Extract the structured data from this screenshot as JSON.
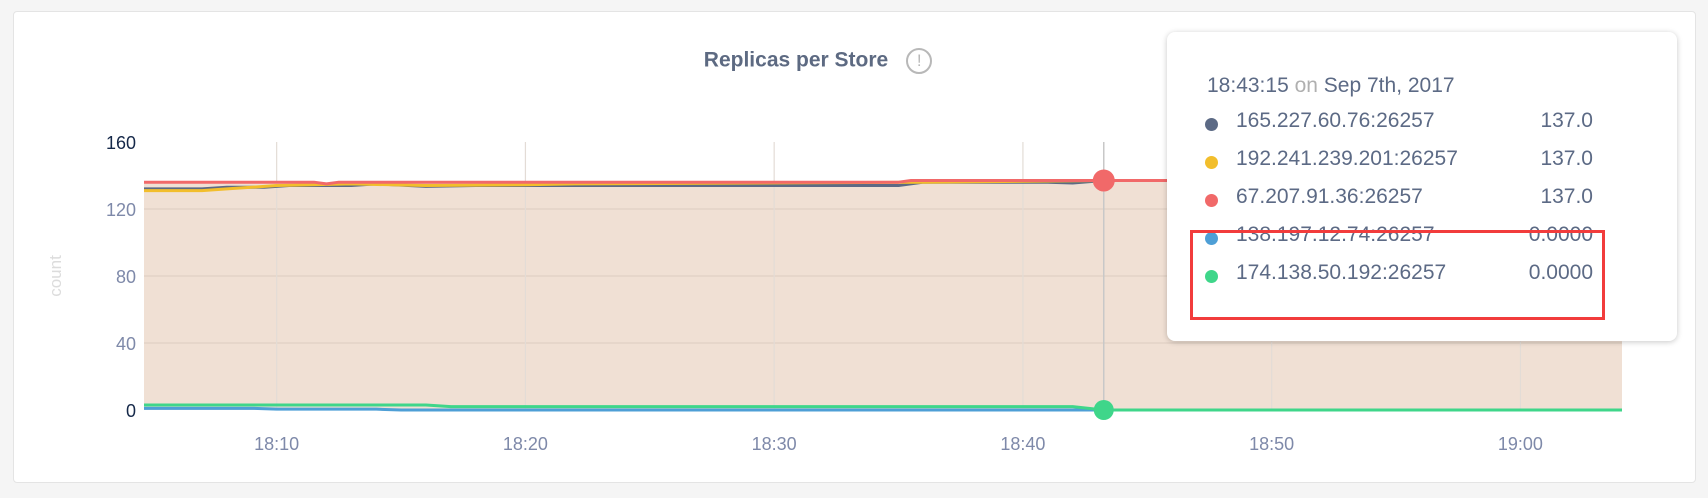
{
  "chart_data": {
    "type": "area",
    "title": "Replicas per Store",
    "ylabel": "count",
    "xlabel": "",
    "ylim": [
      0,
      160
    ],
    "yticks": [
      "0",
      "40",
      "80",
      "120",
      "160"
    ],
    "xlim": [
      "18:04:40",
      "19:04:05"
    ],
    "xticks": [
      "18:10",
      "18:20",
      "18:30",
      "18:40",
      "18:50",
      "19:00"
    ],
    "grid": true,
    "fill_color": "#f0e0d4",
    "series": [
      {
        "name": "165.227.60.76:26257",
        "color": "#5c6a85",
        "points": [
          [
            "18:04:40",
            132
          ],
          [
            "18:07:00",
            132
          ],
          [
            "18:08:00",
            133
          ],
          [
            "18:09:30",
            133
          ],
          [
            "18:10:30",
            134
          ],
          [
            "18:13:00",
            134
          ],
          [
            "18:14:00",
            135
          ],
          [
            "18:16:00",
            133.5
          ],
          [
            "18:18:00",
            134
          ],
          [
            "18:35:00",
            134
          ],
          [
            "18:36:00",
            136
          ],
          [
            "18:41:00",
            136
          ],
          [
            "18:42:00",
            135.5
          ],
          [
            "18:43:15",
            137
          ],
          [
            "19:04:05",
            137
          ]
        ]
      },
      {
        "name": "192.241.239.201:26257",
        "color": "#f2be2c",
        "points": [
          [
            "18:04:40",
            131
          ],
          [
            "18:07:00",
            131
          ],
          [
            "18:08:00",
            132
          ],
          [
            "18:10:00",
            134
          ],
          [
            "18:13:00",
            135
          ],
          [
            "18:16:00",
            134
          ],
          [
            "18:20:00",
            134.5
          ],
          [
            "18:22:00",
            135
          ],
          [
            "18:36:00",
            136
          ],
          [
            "18:43:15",
            137
          ],
          [
            "19:04:05",
            137
          ]
        ]
      },
      {
        "name": "67.207.91.36:26257",
        "color": "#f16969",
        "points": [
          [
            "18:04:40",
            136
          ],
          [
            "18:11:30",
            136
          ],
          [
            "18:12:00",
            135
          ],
          [
            "18:12:30",
            136
          ],
          [
            "18:35:00",
            136
          ],
          [
            "18:35:30",
            137
          ],
          [
            "19:04:05",
            137
          ]
        ]
      },
      {
        "name": "138.197.12.74:26257",
        "color": "#4e9fd6",
        "points": [
          [
            "18:04:40",
            1
          ],
          [
            "18:09:00",
            1
          ],
          [
            "18:10:00",
            0.5
          ],
          [
            "18:14:00",
            0.5
          ],
          [
            "18:15:00",
            0
          ],
          [
            "19:04:05",
            0
          ]
        ]
      },
      {
        "name": "174.138.50.192:26257",
        "color": "#3fd68a",
        "points": [
          [
            "18:04:40",
            3
          ],
          [
            "18:16:00",
            3
          ],
          [
            "18:17:00",
            2
          ],
          [
            "18:42:00",
            2
          ],
          [
            "18:43:15",
            0
          ],
          [
            "19:04:05",
            0
          ]
        ]
      }
    ],
    "crosshair": "18:43:15"
  },
  "tooltip": {
    "time": "18:43:15",
    "on": "on",
    "date": "Sep 7th, 2017",
    "rows": [
      {
        "label": "165.227.60.76:26257",
        "value": "137.0",
        "color": "#5c6a85"
      },
      {
        "label": "192.241.239.201:26257",
        "value": "137.0",
        "color": "#f2be2c"
      },
      {
        "label": "67.207.91.36:26257",
        "value": "137.0",
        "color": "#f16969"
      },
      {
        "label": "138.197.12.74:26257",
        "value": "0.0000",
        "color": "#4e9fd6"
      },
      {
        "label": "174.138.50.192:26257",
        "value": "0.0000",
        "color": "#3fd68a"
      }
    ],
    "highlight_color": "#f23c3c"
  },
  "info_icon": "exclamation-circle-icon",
  "info_glyph": "!"
}
